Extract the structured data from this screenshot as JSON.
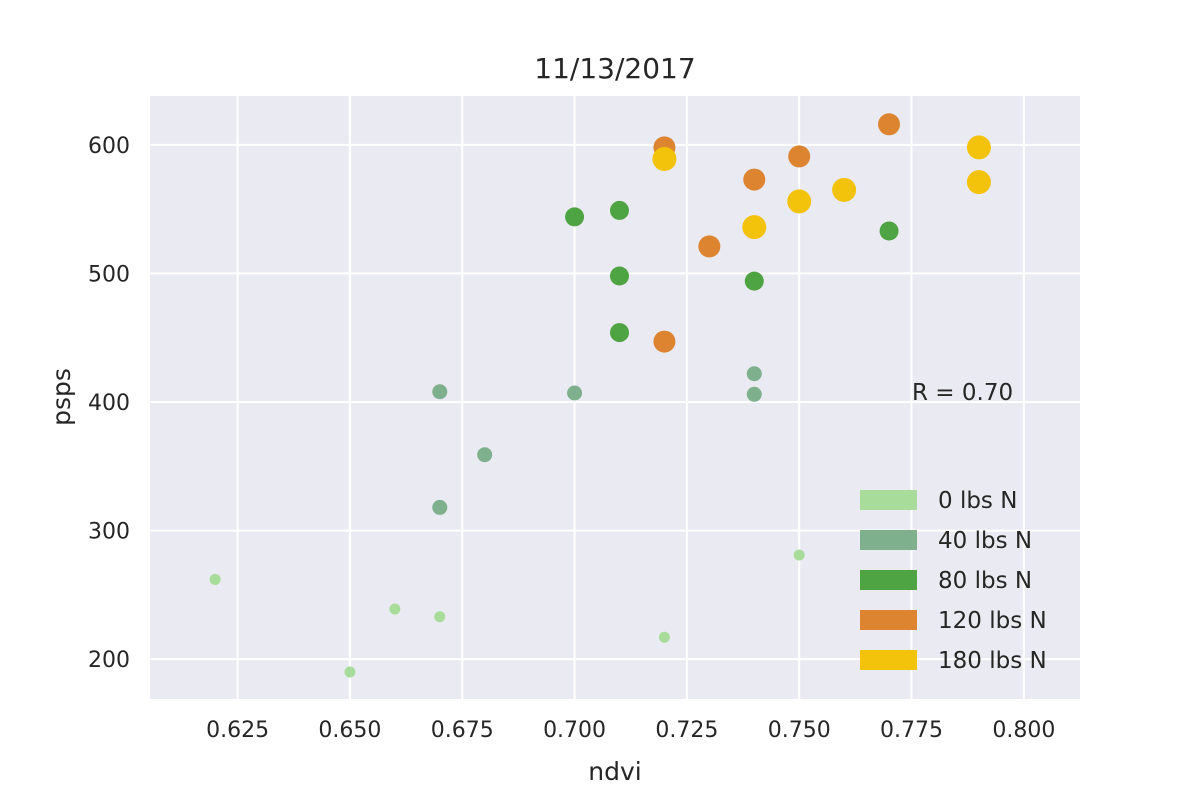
{
  "chart_data": {
    "type": "scatter",
    "title": "11/13/2017",
    "xlabel": "ndvi",
    "ylabel": "psps",
    "xlim": [
      0.6055,
      0.8125
    ],
    "ylim": [
      169,
      638
    ],
    "xticks": [
      0.625,
      0.65,
      0.675,
      0.7,
      0.725,
      0.75,
      0.775,
      0.8
    ],
    "xtick_labels": [
      "0.625",
      "0.650",
      "0.675",
      "0.700",
      "0.725",
      "0.750",
      "0.775",
      "0.800"
    ],
    "yticks": [
      200,
      300,
      400,
      500,
      600
    ],
    "ytick_labels": [
      "200",
      "300",
      "400",
      "500",
      "600"
    ],
    "grid": true,
    "legend_position": "lower-right",
    "annotation": "R = 0.70",
    "series": [
      {
        "name": "0 lbs N",
        "color": "#a8dc9a",
        "points": [
          {
            "x": 0.62,
            "y": 262
          },
          {
            "x": 0.65,
            "y": 190
          },
          {
            "x": 0.66,
            "y": 239
          },
          {
            "x": 0.67,
            "y": 233
          },
          {
            "x": 0.72,
            "y": 217
          },
          {
            "x": 0.75,
            "y": 281
          }
        ]
      },
      {
        "name": "40 lbs N",
        "color": "#7fb08e",
        "points": [
          {
            "x": 0.67,
            "y": 408
          },
          {
            "x": 0.67,
            "y": 318
          },
          {
            "x": 0.68,
            "y": 359
          },
          {
            "x": 0.7,
            "y": 407
          },
          {
            "x": 0.74,
            "y": 422
          },
          {
            "x": 0.74,
            "y": 406
          }
        ]
      },
      {
        "name": "80 lbs N",
        "color": "#4ea343",
        "points": [
          {
            "x": 0.7,
            "y": 544
          },
          {
            "x": 0.71,
            "y": 549
          },
          {
            "x": 0.71,
            "y": 498
          },
          {
            "x": 0.71,
            "y": 454
          },
          {
            "x": 0.74,
            "y": 494
          },
          {
            "x": 0.77,
            "y": 533
          }
        ]
      },
      {
        "name": "120 lbs N",
        "color": "#dc8430",
        "points": [
          {
            "x": 0.72,
            "y": 598
          },
          {
            "x": 0.72,
            "y": 447
          },
          {
            "x": 0.73,
            "y": 521
          },
          {
            "x": 0.74,
            "y": 573
          },
          {
            "x": 0.75,
            "y": 591
          },
          {
            "x": 0.77,
            "y": 616
          }
        ]
      },
      {
        "name": "180 lbs N",
        "color": "#f3c20b",
        "points": [
          {
            "x": 0.72,
            "y": 589
          },
          {
            "x": 0.74,
            "y": 536
          },
          {
            "x": 0.75,
            "y": 556
          },
          {
            "x": 0.76,
            "y": 565
          },
          {
            "x": 0.79,
            "y": 598
          },
          {
            "x": 0.79,
            "y": 571
          }
        ]
      }
    ]
  }
}
